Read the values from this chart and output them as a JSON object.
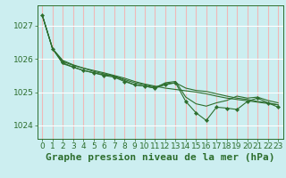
{
  "title": "Graphe pression niveau de la mer (hPa)",
  "background_color": "#cceef0",
  "grid_color_h": "#ffffff",
  "grid_color_v": "#f0b8b8",
  "line_color": "#2d6e2d",
  "xlim": [
    -0.5,
    23.5
  ],
  "ylim": [
    1023.6,
    1027.6
  ],
  "yticks": [
    1024,
    1025,
    1026,
    1027
  ],
  "xticks": [
    0,
    1,
    2,
    3,
    4,
    5,
    6,
    7,
    8,
    9,
    10,
    11,
    12,
    13,
    14,
    15,
    16,
    17,
    18,
    19,
    20,
    21,
    22,
    23
  ],
  "series": [
    [
      1027.3,
      1026.3,
      1025.88,
      1025.75,
      1025.65,
      1025.58,
      1025.5,
      1025.45,
      1025.32,
      1025.22,
      1025.18,
      1025.12,
      1025.22,
      1025.28,
      1024.72,
      1024.38,
      1024.15,
      1024.55,
      1024.52,
      1024.48,
      1024.72,
      1024.82,
      1024.68,
      1024.55
    ],
    [
      1027.3,
      1026.3,
      1025.95,
      1025.82,
      1025.72,
      1025.62,
      1025.55,
      1025.48,
      1025.38,
      1025.28,
      1025.22,
      1025.15,
      1025.25,
      1025.28,
      1025.12,
      1025.05,
      1025.02,
      1024.95,
      1024.88,
      1024.82,
      1024.78,
      1024.72,
      1024.68,
      1024.62
    ],
    [
      1027.3,
      1026.3,
      1025.92,
      1025.8,
      1025.72,
      1025.65,
      1025.58,
      1025.5,
      1025.42,
      1025.32,
      1025.24,
      1025.18,
      1025.12,
      1025.08,
      1025.04,
      1025.0,
      1024.95,
      1024.88,
      1024.82,
      1024.78,
      1024.74,
      1024.7,
      1024.66,
      1024.62
    ],
    [
      1027.3,
      1026.3,
      1025.85,
      1025.75,
      1025.65,
      1025.58,
      1025.52,
      1025.48,
      1025.35,
      1025.22,
      1025.18,
      1025.12,
      1025.28,
      1025.32,
      1024.85,
      1024.65,
      1024.58,
      1024.68,
      1024.75,
      1024.88,
      1024.82,
      1024.85,
      1024.75,
      1024.68
    ]
  ],
  "marker_series_index": 0,
  "title_fontsize": 8,
  "tick_fontsize": 6.5
}
